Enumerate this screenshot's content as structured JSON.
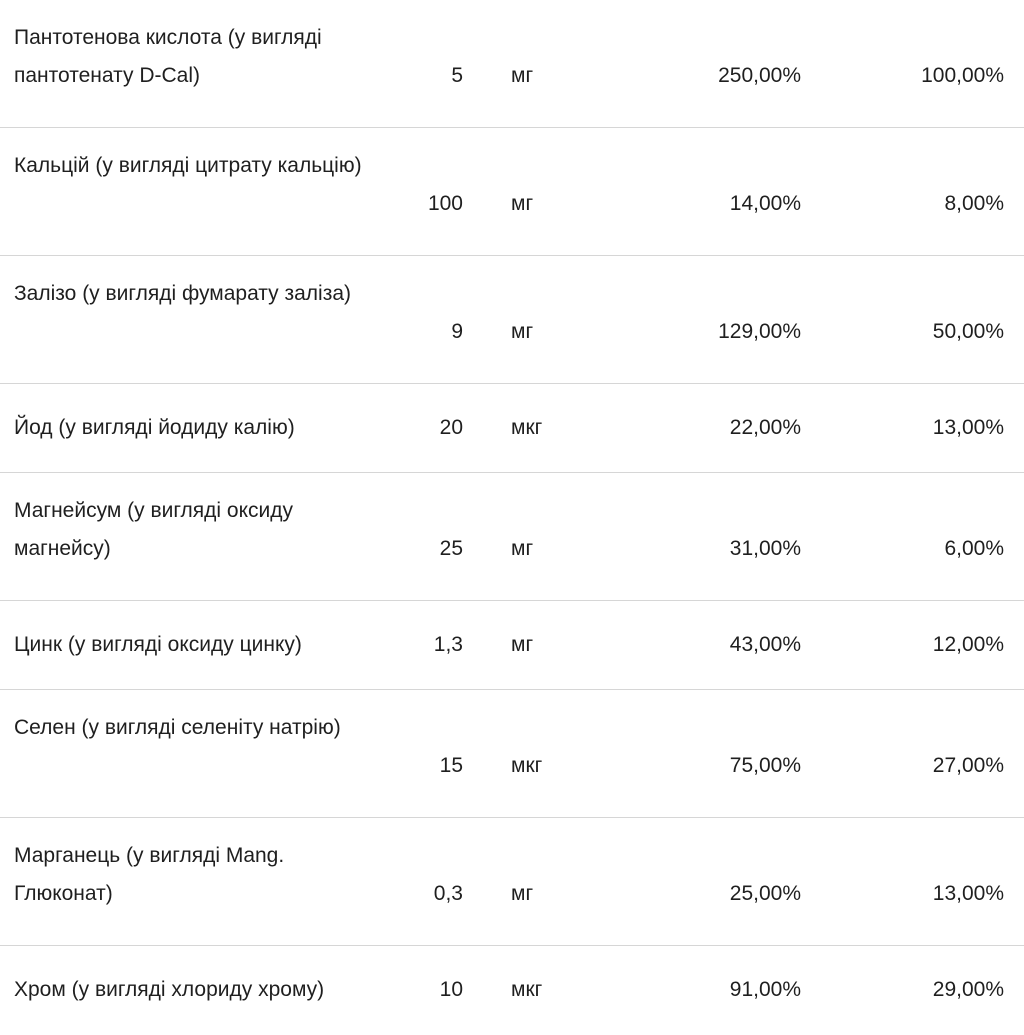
{
  "table": {
    "rows": [
      {
        "name": "Пантотенова кислота (у вигляді пантотенату D-Cal)",
        "amount": "5",
        "unit": "мг",
        "pct1": "250,00%",
        "pct2": "100,00%"
      },
      {
        "name": "Кальцій (у вигляді цитрату кальцію)",
        "amount": "100",
        "unit": "мг",
        "pct1": "14,00%",
        "pct2": "8,00%"
      },
      {
        "name": "Залізо (у вигляді фумарату заліза)",
        "amount": "9",
        "unit": "мг",
        "pct1": "129,00%",
        "pct2": "50,00%"
      },
      {
        "name": "Йод (у вигляді йодиду калію)",
        "amount": "20",
        "unit": "мкг",
        "pct1": "22,00%",
        "pct2": "13,00%"
      },
      {
        "name": "Магнейсум (у вигляді оксиду магнейсу)",
        "amount": "25",
        "unit": "мг",
        "pct1": "31,00%",
        "pct2": "6,00%"
      },
      {
        "name": "Цинк (у вигляді оксиду цинку)",
        "amount": "1,3",
        "unit": "мг",
        "pct1": "43,00%",
        "pct2": "12,00%"
      },
      {
        "name": "Селен (у вигляді селеніту натрію)",
        "amount": "15",
        "unit": "мкг",
        "pct1": "75,00%",
        "pct2": "27,00%"
      },
      {
        "name": "Марганець (у вигляді Mang. Глюконат)",
        "amount": "0,3",
        "unit": "мг",
        "pct1": "25,00%",
        "pct2": "13,00%"
      },
      {
        "name": "Хром (у вигляді хлориду хрому)",
        "amount": "10",
        "unit": "мкг",
        "pct1": "91,00%",
        "pct2": "29,00%"
      }
    ]
  }
}
